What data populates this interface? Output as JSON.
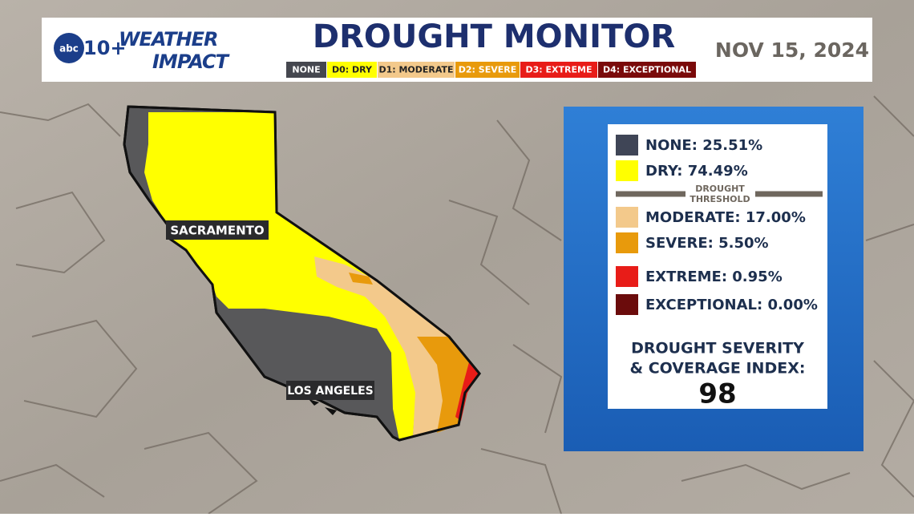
{
  "header": {
    "logo": "abc",
    "logo_number": "10+",
    "brand_top": "WEATHER",
    "brand_bottom": "IMPACT",
    "title": "DROUGHT MONITOR",
    "date": "NOV 15, 2024",
    "legend": [
      {
        "label": "NONE",
        "color": "#45474f",
        "text_color": "#ffffff"
      },
      {
        "label": "D0: DRY",
        "color": "#ffff00",
        "text_color": "#222222"
      },
      {
        "label": "D1: MODERATE",
        "color": "#f3c98b",
        "text_color": "#222222"
      },
      {
        "label": "D2: SEVERE",
        "color": "#e89a0c",
        "text_color": "#ffffff"
      },
      {
        "label": "D3: EXTREME",
        "color": "#e81c18",
        "text_color": "#ffffff"
      },
      {
        "label": "D4: EXCEPTIONAL",
        "color": "#7a0a0a",
        "text_color": "#ffffff"
      }
    ]
  },
  "map": {
    "labels": [
      "SACRAMENTO",
      "LOS ANGELES"
    ]
  },
  "panel": {
    "items": [
      {
        "label": "NONE: 25.51%",
        "color": "#3f4556"
      },
      {
        "label": "DRY: 74.49%",
        "color": "#ffff00"
      },
      {
        "label": "MODERATE: 17.00%",
        "color": "#f3c98b"
      },
      {
        "label": "SEVERE: 5.50%",
        "color": "#e89a0c"
      },
      {
        "label": "EXTREME: 0.95%",
        "color": "#e81c18"
      },
      {
        "label": "EXCEPTIONAL: 0.00%",
        "color": "#6b0c0c"
      }
    ],
    "threshold": [
      "DROUGHT",
      "THRESHOLD"
    ],
    "index_label": [
      "DROUGHT SEVERITY",
      "& COVERAGE INDEX:"
    ],
    "index_value": "98"
  }
}
